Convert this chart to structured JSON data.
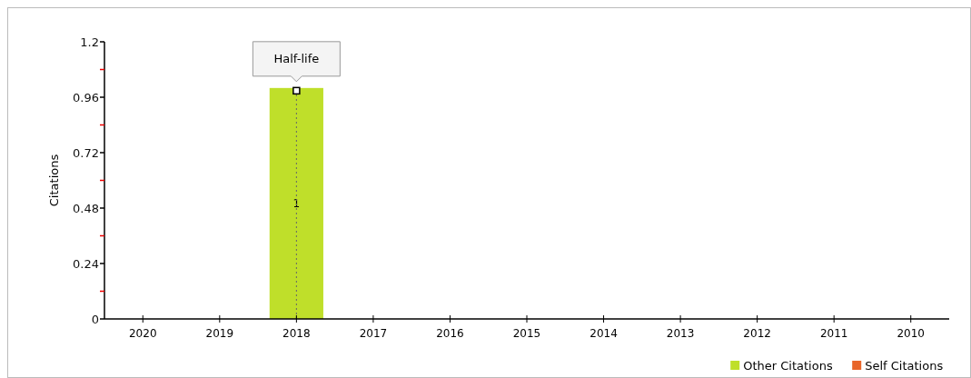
{
  "chart_data": {
    "type": "bar",
    "ylabel": "Citations",
    "categories": [
      "2020",
      "2019",
      "2018",
      "2017",
      "2016",
      "2015",
      "2014",
      "2013",
      "2012",
      "2011",
      "2010"
    ],
    "series": [
      {
        "name": "Other Citations",
        "color": "#bfdf2a",
        "values": [
          0,
          0,
          1,
          0,
          0,
          0,
          0,
          0,
          0,
          0,
          0
        ],
        "value_labels": [
          null,
          null,
          "1",
          null,
          null,
          null,
          null,
          null,
          null,
          null,
          null
        ]
      },
      {
        "name": "Self Citations",
        "color": "#e8662a",
        "values": [
          0,
          0,
          0,
          0,
          0,
          0,
          0,
          0,
          0,
          0,
          0
        ]
      }
    ],
    "ylim": [
      0,
      1.2
    ],
    "yticks": [
      0,
      {
        "value": 0.12,
        "label": null
      },
      0.24,
      {
        "value": 0.36,
        "label": null
      },
      0.48,
      {
        "value": 0.6,
        "label": null
      },
      0.72,
      {
        "value": 0.84,
        "label": null
      },
      0.96,
      {
        "value": 1.08,
        "label": null
      },
      1.2
    ],
    "ref_lines": [
      {
        "axis": "x",
        "value": "2018",
        "label": "Half-life",
        "line_style": "dotted",
        "color": "#666666"
      }
    ],
    "legend": "bottom right",
    "grid": false
  }
}
